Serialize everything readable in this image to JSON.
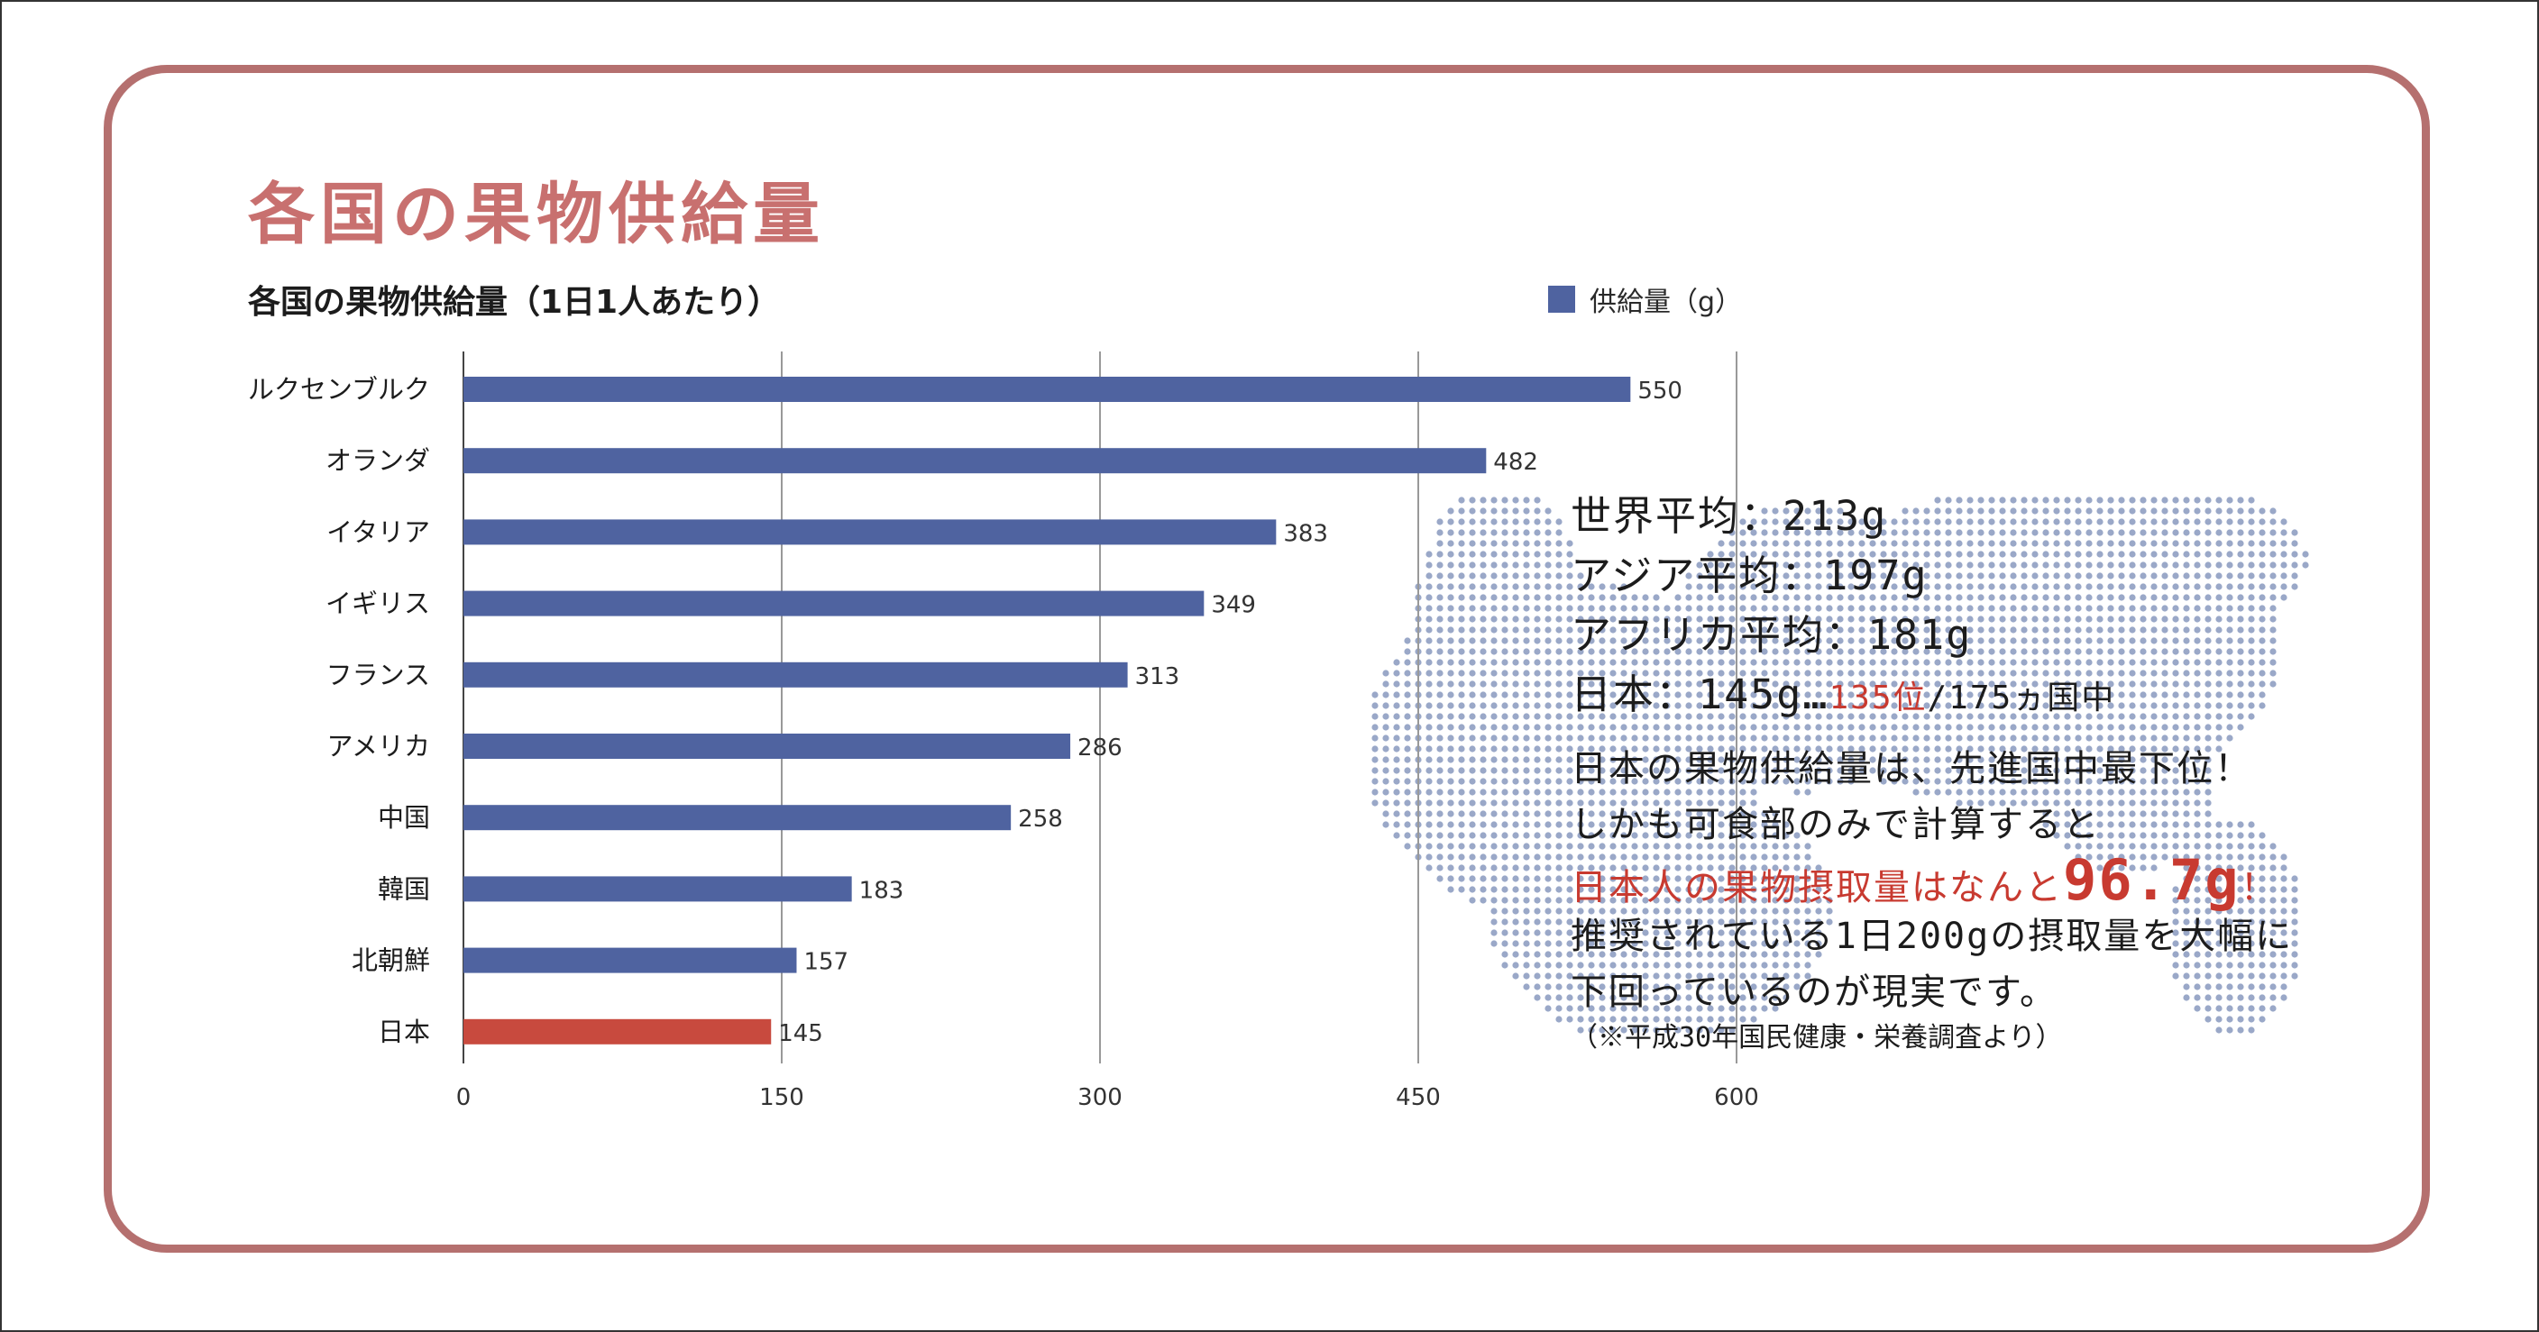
{
  "page_title": "各国の果物供給量",
  "chart_data": {
    "type": "bar",
    "orientation": "horizontal",
    "title": "各国の果物供給量（1日1人あたり）",
    "categories": [
      "ルクセンブルク",
      "オランダ",
      "イタリア",
      "イギリス",
      "フランス",
      "アメリカ",
      "中国",
      "韓国",
      "北朝鮮",
      "日本"
    ],
    "series": [
      {
        "name": "供給量（g）",
        "values": [
          550,
          482,
          383,
          349,
          313,
          286,
          258,
          183,
          157,
          145
        ]
      }
    ],
    "highlight_category": "日本",
    "xlim": [
      0,
      600
    ],
    "x_ticks": [
      0,
      150,
      300,
      450,
      600
    ],
    "grid": true,
    "legend": "top-right",
    "colors": {
      "bar": "#4f63a0",
      "highlight": "#c84a3e",
      "grid": "#999999"
    }
  },
  "stats": {
    "world": "世界平均：213g",
    "asia": "アジア平均：197g",
    "africa": "アフリカ平均：181g",
    "japan_prefix": "日本：145g…",
    "japan_rank": "135位",
    "japan_suffix": "/175ヵ国中"
  },
  "note": {
    "line1": "日本の果物供給量は、先進国中最下位！",
    "line2": "しかも可食部のみで計算すると",
    "line3_prefix": "日本人の果物摂取量はなんと",
    "line3_value": "96.7g",
    "line3_suffix": "！",
    "line4": "推奨されている1日200gの摂取量を大幅に",
    "line5": "下回っているのが現実です。",
    "source": "（※平成30年国民健康・栄養調査より）"
  },
  "colors": {
    "accent": "#c8706f",
    "border": "#b5706f",
    "highlight_text": "#c83a30",
    "map_dots": "#9aa8c8"
  }
}
